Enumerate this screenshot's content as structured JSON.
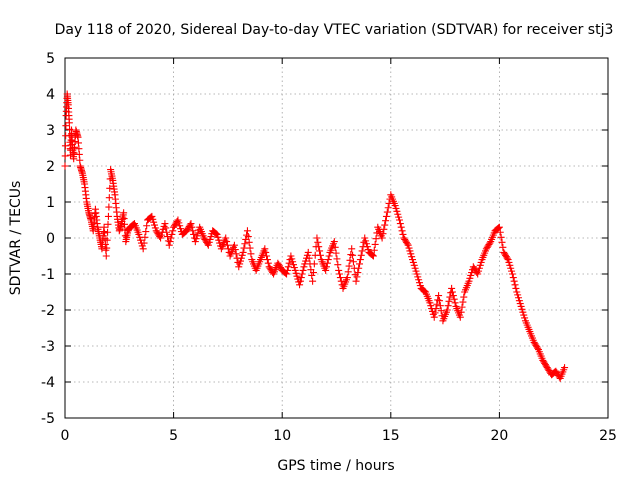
{
  "chart_data": {
    "type": "scatter",
    "title": "Day 118 of 2020, Sidereal Day-to-day VTEC variation (SDTVAR) for receiver stj3",
    "xlabel": "GPS time / hours",
    "ylabel": "SDTVAR / TECUs",
    "xlim": [
      0,
      25
    ],
    "ylim": [
      -5,
      5
    ],
    "xticks": [
      0,
      5,
      10,
      15,
      20,
      25
    ],
    "yticks": [
      -5,
      -4,
      -3,
      -2,
      -1,
      0,
      1,
      2,
      3,
      4,
      5
    ],
    "grid": true,
    "marker": "plus",
    "color": "#ff0000",
    "series": [
      {
        "name": "SDTVAR",
        "x": [
          0.0,
          0.05,
          0.1,
          0.15,
          0.2,
          0.25,
          0.3,
          0.35,
          0.4,
          0.5,
          0.6,
          0.7,
          0.8,
          0.9,
          1.0,
          1.1,
          1.2,
          1.3,
          1.4,
          1.5,
          1.6,
          1.7,
          1.8,
          1.9,
          2.0,
          2.1,
          2.2,
          2.3,
          2.4,
          2.5,
          2.6,
          2.7,
          2.8,
          2.9,
          3.0,
          3.2,
          3.4,
          3.6,
          3.8,
          4.0,
          4.2,
          4.4,
          4.6,
          4.8,
          5.0,
          5.2,
          5.4,
          5.6,
          5.8,
          6.0,
          6.2,
          6.4,
          6.6,
          6.8,
          7.0,
          7.2,
          7.4,
          7.6,
          7.8,
          8.0,
          8.2,
          8.4,
          8.6,
          8.8,
          9.0,
          9.2,
          9.4,
          9.6,
          9.8,
          10.0,
          10.2,
          10.4,
          10.6,
          10.8,
          11.0,
          11.2,
          11.4,
          11.6,
          11.8,
          12.0,
          12.2,
          12.4,
          12.6,
          12.8,
          13.0,
          13.2,
          13.4,
          13.6,
          13.8,
          14.0,
          14.2,
          14.4,
          14.6,
          14.8,
          15.0,
          15.2,
          15.4,
          15.6,
          15.8,
          16.0,
          16.2,
          16.4,
          16.6,
          16.8,
          17.0,
          17.2,
          17.4,
          17.6,
          17.8,
          18.0,
          18.2,
          18.4,
          18.6,
          18.8,
          19.0,
          19.2,
          19.4,
          19.6,
          19.8,
          20.0,
          20.2,
          20.4,
          20.6,
          20.8,
          21.0,
          21.2,
          21.4,
          21.6,
          21.8,
          22.0,
          22.2,
          22.4,
          22.6,
          22.8,
          23.0
        ],
        "y": [
          2.0,
          3.4,
          4.0,
          3.7,
          3.2,
          2.3,
          3.0,
          2.5,
          2.2,
          3.0,
          2.8,
          2.0,
          1.8,
          1.5,
          1.0,
          0.7,
          0.5,
          0.2,
          0.8,
          0.3,
          0.0,
          -0.3,
          0.3,
          -0.5,
          0.6,
          1.9,
          1.6,
          1.2,
          0.6,
          0.2,
          0.4,
          0.7,
          -0.1,
          0.2,
          0.3,
          0.4,
          0.1,
          -0.3,
          0.5,
          0.6,
          0.2,
          0.0,
          0.4,
          -0.2,
          0.3,
          0.5,
          0.1,
          0.2,
          0.4,
          -0.1,
          0.3,
          0.0,
          -0.2,
          0.2,
          0.1,
          -0.3,
          0.0,
          -0.5,
          -0.2,
          -0.8,
          -0.4,
          0.2,
          -0.6,
          -0.9,
          -0.6,
          -0.3,
          -0.8,
          -1.0,
          -0.7,
          -0.9,
          -1.0,
          -0.5,
          -0.9,
          -1.3,
          -0.8,
          -0.4,
          -1.2,
          0.0,
          -0.6,
          -0.9,
          -0.4,
          -0.1,
          -0.9,
          -1.4,
          -1.1,
          -0.3,
          -1.2,
          -0.6,
          0.0,
          -0.4,
          -0.5,
          0.3,
          0.0,
          0.6,
          1.2,
          0.9,
          0.5,
          0.0,
          -0.2,
          -0.6,
          -1.0,
          -1.4,
          -1.5,
          -1.8,
          -2.2,
          -1.6,
          -2.3,
          -2.0,
          -1.4,
          -1.9,
          -2.2,
          -1.5,
          -1.2,
          -0.8,
          -1.0,
          -0.6,
          -0.3,
          -0.1,
          0.2,
          0.3,
          -0.4,
          -0.6,
          -1.0,
          -1.5,
          -1.9,
          -2.3,
          -2.6,
          -2.9,
          -3.1,
          -3.4,
          -3.6,
          -3.8,
          -3.7,
          -3.9,
          -3.6
        ]
      }
    ]
  }
}
